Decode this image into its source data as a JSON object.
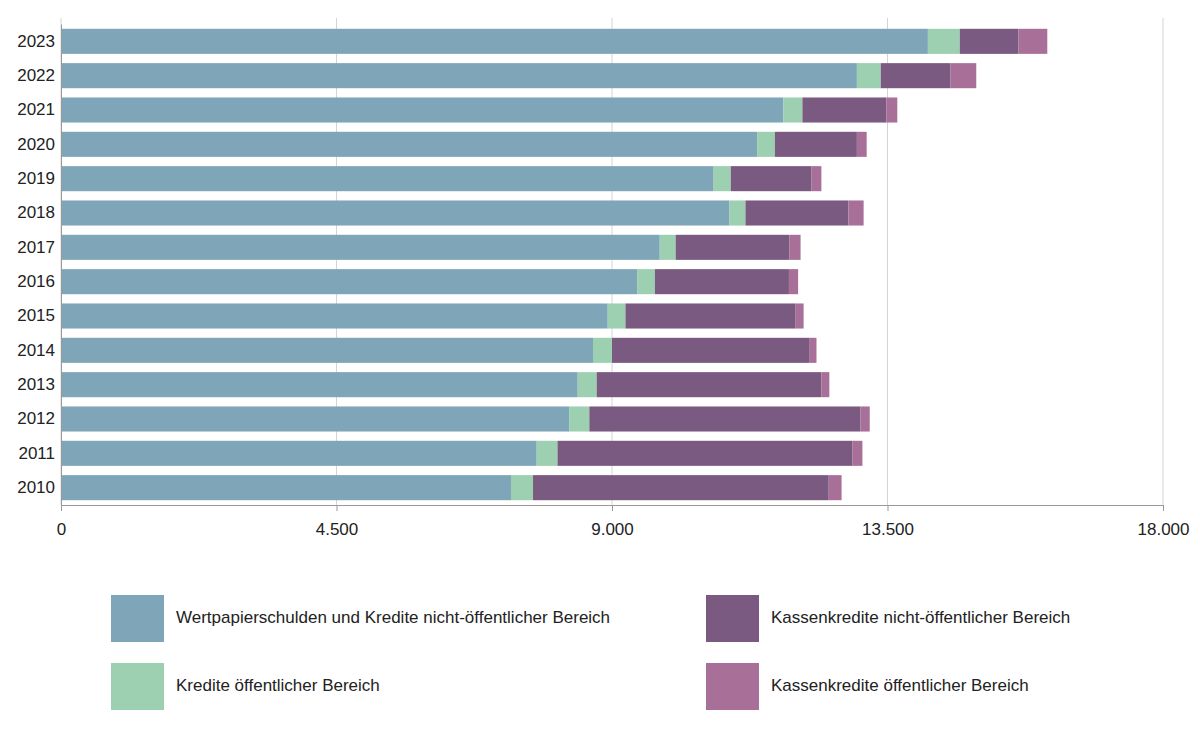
{
  "chart_data": {
    "type": "bar",
    "orientation": "horizontal",
    "stacked": true,
    "grid": true,
    "legend": "bottom",
    "categories": [
      "2023",
      "2022",
      "2021",
      "2020",
      "2019",
      "2018",
      "2017",
      "2016",
      "2015",
      "2014",
      "2013",
      "2012",
      "2011",
      "2010"
    ],
    "series": [
      {
        "name": "Wertpapierschulden und Kredite nicht-öffentlicher Bereich",
        "color": "#7fa5b8",
        "values": [
          14160,
          13000,
          11800,
          11370,
          10660,
          10920,
          9780,
          9410,
          8930,
          8690,
          8440,
          8300,
          7770,
          7350
        ]
      },
      {
        "name": "Kredite öffentlicher Bereich",
        "color": "#9dcfb1",
        "values": [
          520,
          390,
          310,
          290,
          280,
          260,
          260,
          290,
          290,
          310,
          310,
          330,
          340,
          360
        ]
      },
      {
        "name": "Kassenkredite nicht-öffentlicher Bereich",
        "color": "#7b5a82",
        "values": [
          960,
          1140,
          1370,
          1340,
          1320,
          1680,
          1860,
          2190,
          2780,
          3230,
          3670,
          4430,
          4820,
          4830
        ]
      },
      {
        "name": "Kassenkredite öffentlicher Bereich",
        "color": "#a87099",
        "values": [
          470,
          420,
          180,
          160,
          160,
          250,
          180,
          150,
          130,
          110,
          130,
          150,
          160,
          210
        ]
      }
    ],
    "xlim": [
      0,
      18000
    ],
    "xticks": [
      0,
      {
        "value": 4500,
        "label": "4.500"
      },
      {
        "value": 9000,
        "label": "9.000"
      },
      {
        "value": 13500,
        "label": "13.500"
      },
      {
        "value": 18000,
        "label": "18.000"
      }
    ]
  }
}
